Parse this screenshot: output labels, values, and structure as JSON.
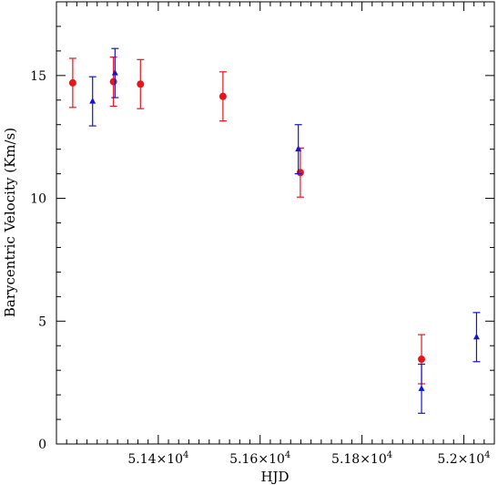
{
  "chart_data": {
    "type": "scatter",
    "xlabel": "HJD",
    "ylabel": "Barycentric Velocity (Km/s)",
    "xlim": [
      51200,
      52060
    ],
    "ylim": [
      0,
      18
    ],
    "x_ticks": [
      {
        "value": 51400,
        "label": "5.14×10"
      },
      {
        "value": 51600,
        "label": "5.16×10"
      },
      {
        "value": 51800,
        "label": "5.18×10"
      },
      {
        "value": 52000,
        "label": "5.2×10"
      }
    ],
    "x_tick_exponent": "4",
    "y_ticks": [
      {
        "value": 0,
        "label": "0"
      },
      {
        "value": 5,
        "label": "5"
      },
      {
        "value": 10,
        "label": "10"
      },
      {
        "value": 15,
        "label": "15"
      }
    ],
    "series": [
      {
        "marker": "circle",
        "color": "#e8141c",
        "points": [
          {
            "x": 51232,
            "y": 14.7,
            "err": 1.0
          },
          {
            "x": 51312,
            "y": 14.75,
            "err": 1.0
          },
          {
            "x": 51365,
            "y": 14.65,
            "err": 1.0
          },
          {
            "x": 51527,
            "y": 14.15,
            "err": 1.0
          },
          {
            "x": 51679,
            "y": 11.05,
            "err": 1.0
          },
          {
            "x": 51917,
            "y": 3.45,
            "err": 1.0
          }
        ]
      },
      {
        "marker": "triangle",
        "color": "#1414d2",
        "points": [
          {
            "x": 51271,
            "y": 13.95,
            "err": 1.0
          },
          {
            "x": 51315,
            "y": 15.1,
            "err": 1.0
          },
          {
            "x": 51675,
            "y": 12.0,
            "err": 1.0
          },
          {
            "x": 51917,
            "y": 2.25,
            "err": 1.0
          },
          {
            "x": 52025,
            "y": 4.35,
            "err": 1.0
          }
        ]
      }
    ],
    "grid": false,
    "legend": "none"
  }
}
